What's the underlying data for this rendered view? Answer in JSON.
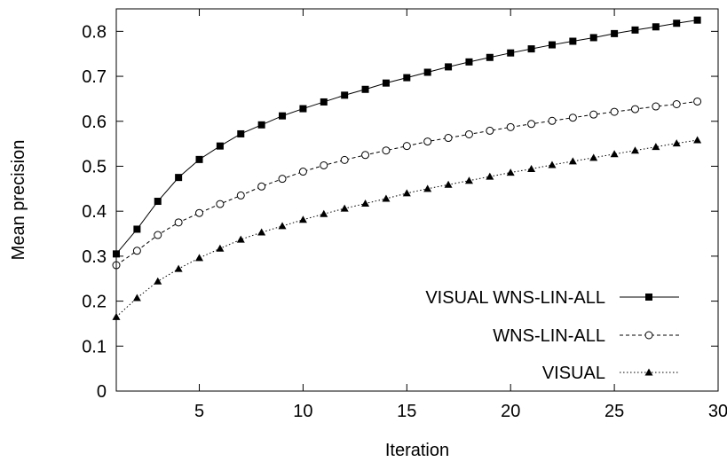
{
  "chart_data": {
    "type": "line",
    "title": "",
    "xlabel": "Iteration",
    "ylabel": "Mean precision",
    "xlim": [
      1,
      30
    ],
    "ylim": [
      0,
      0.85
    ],
    "xticks": [
      5,
      10,
      15,
      20,
      25,
      30
    ],
    "yticks": [
      0,
      0.1,
      0.2,
      0.3,
      0.4,
      0.5,
      0.6,
      0.7,
      0.8
    ],
    "grid": false,
    "legend_position": "bottom-right",
    "x": [
      1,
      2,
      3,
      4,
      5,
      6,
      7,
      8,
      9,
      10,
      11,
      12,
      13,
      14,
      15,
      16,
      17,
      18,
      19,
      20,
      21,
      22,
      23,
      24,
      25,
      26,
      27,
      28,
      29
    ],
    "series": [
      {
        "name": "VISUAL WNS-LIN-ALL",
        "marker": "square-filled",
        "line_style": "solid",
        "values": [
          0.305,
          0.36,
          0.422,
          0.475,
          0.515,
          0.545,
          0.572,
          0.592,
          0.612,
          0.628,
          0.643,
          0.658,
          0.671,
          0.685,
          0.697,
          0.709,
          0.721,
          0.732,
          0.742,
          0.752,
          0.761,
          0.77,
          0.778,
          0.786,
          0.795,
          0.803,
          0.81,
          0.818,
          0.825
        ]
      },
      {
        "name": "WNS-LIN-ALL",
        "marker": "circle-open",
        "line_style": "dashed",
        "values": [
          0.28,
          0.312,
          0.347,
          0.375,
          0.396,
          0.416,
          0.435,
          0.455,
          0.472,
          0.488,
          0.502,
          0.514,
          0.525,
          0.535,
          0.545,
          0.555,
          0.563,
          0.571,
          0.579,
          0.587,
          0.594,
          0.601,
          0.608,
          0.615,
          0.621,
          0.627,
          0.633,
          0.638,
          0.644
        ]
      },
      {
        "name": "VISUAL",
        "marker": "triangle-filled",
        "line_style": "dotted",
        "values": [
          0.165,
          0.207,
          0.244,
          0.272,
          0.296,
          0.317,
          0.337,
          0.353,
          0.367,
          0.381,
          0.394,
          0.406,
          0.417,
          0.428,
          0.44,
          0.45,
          0.459,
          0.468,
          0.477,
          0.486,
          0.494,
          0.503,
          0.511,
          0.519,
          0.527,
          0.535,
          0.543,
          0.551,
          0.558
        ]
      }
    ]
  }
}
